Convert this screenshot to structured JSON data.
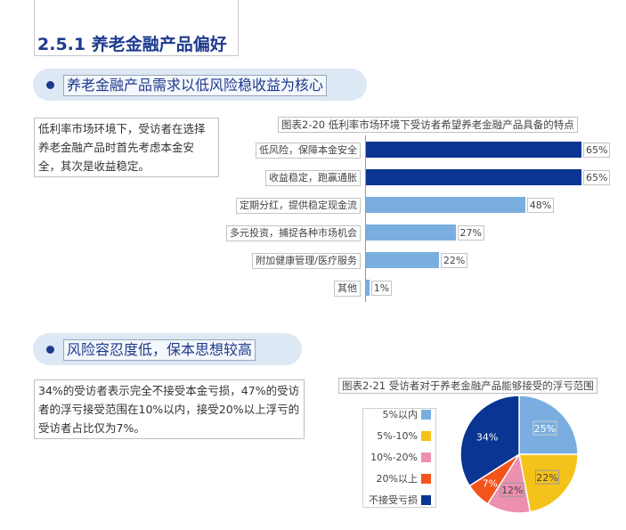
{
  "section": {
    "title": "2.5.1 养老金融产品偏好"
  },
  "block1": {
    "heading": "养老金融产品需求以低风险稳收益为核心",
    "text": "低利率市场环境下，受访者在选择养老金融产品时首先考虑本金安全，其次是收益稳定。",
    "chart_title": "图表2-20 低利率市场环境下受访者希望养老金融产品具备的特点"
  },
  "block2": {
    "heading": "风险容忍度低，保本思想较高",
    "text": "34%的受访者表示完全不接受本金亏损，47%的受访者的浮亏接受范围在10%以内，接受20%以上浮亏的受访者占比仅为7%。",
    "chart_title": "图表2-21 受访者对于养老金融产品能够接受的浮亏范围"
  },
  "colors": {
    "dark_blue": "#0a3592",
    "light_blue": "#7aaee0",
    "yellow": "#f5c21b",
    "pink": "#ec8fb0",
    "orange": "#f2541b",
    "navy_text": "#1e3a8f"
  },
  "chart_data": [
    {
      "type": "bar",
      "orientation": "horizontal",
      "title": "图表2-20 低利率市场环境下受访者希望养老金融产品具备的特点",
      "categories": [
        "低风险，保障本金安全",
        "收益稳定，跑赢通胀",
        "定期分红，提供稳定现金流",
        "多元投资，捕捉各种市场机会",
        "附加健康管理/医疗服务",
        "其他"
      ],
      "values": [
        65,
        65,
        48,
        27,
        22,
        1
      ],
      "value_labels": [
        "65%",
        "65%",
        "48%",
        "27%",
        "22%",
        "1%"
      ],
      "bar_colors": [
        "#0a3592",
        "#0a3592",
        "#7aaee0",
        "#7aaee0",
        "#7aaee0",
        "#7aaee0"
      ],
      "xlim": [
        0,
        65
      ],
      "grid": false
    },
    {
      "type": "pie",
      "title": "图表2-21 受访者对于养老金融产品能够接受的浮亏范围",
      "labels": [
        "5%以内",
        "5%-10%",
        "10%-20%",
        "20%以上",
        "不接受亏损"
      ],
      "values": [
        25,
        22,
        12,
        7,
        34
      ],
      "value_labels": [
        "25%",
        "22%",
        "12%",
        "7%",
        "34%"
      ],
      "colors": [
        "#7aaee0",
        "#f5c21b",
        "#ec8fb0",
        "#f2541b",
        "#0a3592"
      ],
      "legend": "left"
    }
  ]
}
